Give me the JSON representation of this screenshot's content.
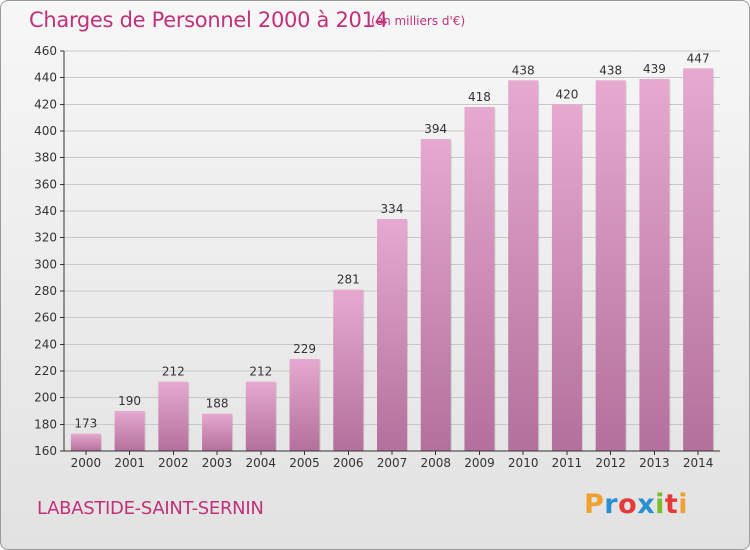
{
  "header": {
    "title": "Charges de Personnel 2000 à 2014",
    "subtitle": "(en milliers d'€)"
  },
  "footer": {
    "commune": "LABASTIDE-SAINT-SERNIN",
    "logo": {
      "text": "Proxiti",
      "letter_colors": [
        "#f0a030",
        "#2a8fd0",
        "#e43a3a",
        "#2a8fd0",
        "#7bbb2e",
        "#e43a3a",
        "#f0a030"
      ]
    }
  },
  "colors": {
    "accent": "#c2307a",
    "bar_top": "#e6a9cf",
    "bar_bottom": "#b3709c",
    "grid": "#c8c8c8",
    "axis": "#333333"
  },
  "chart_data": {
    "type": "bar",
    "categories": [
      "2000",
      "2001",
      "2002",
      "2003",
      "2004",
      "2005",
      "2006",
      "2007",
      "2008",
      "2009",
      "2010",
      "2011",
      "2012",
      "2013",
      "2014"
    ],
    "values": [
      173,
      190,
      212,
      188,
      212,
      229,
      281,
      334,
      394,
      418,
      438,
      420,
      438,
      439,
      447
    ],
    "ylim": [
      160,
      460
    ],
    "yticks": [
      160,
      180,
      200,
      220,
      240,
      260,
      280,
      300,
      320,
      340,
      360,
      380,
      400,
      420,
      440,
      460
    ],
    "grid": true,
    "data_labels": true
  }
}
